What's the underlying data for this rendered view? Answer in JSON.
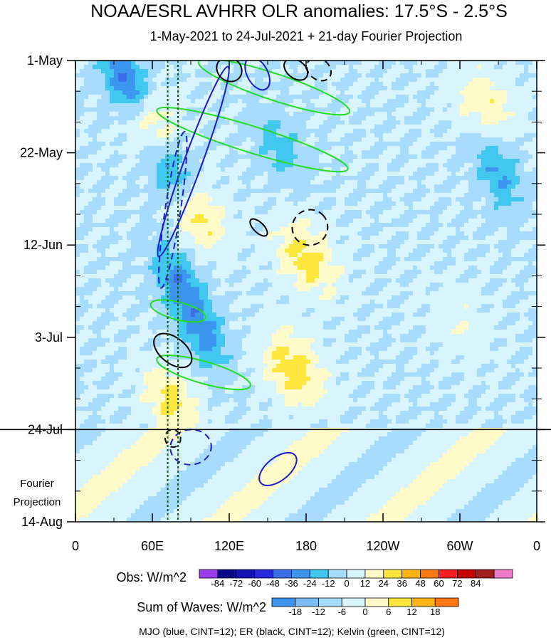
{
  "chart_data": {
    "type": "heatmap",
    "title": "NOAA/ESRL AVHRR OLR anomalies: 17.5°S - 2.5°S",
    "subtitle": "1-May-2021 to 24-Jul-2021 + 21-day Fourier Projection",
    "x_ticks": [
      "0",
      "60E",
      "120E",
      "180",
      "120W",
      "60W",
      "0"
    ],
    "x_tick_values": [
      0,
      60,
      120,
      180,
      240,
      300,
      360
    ],
    "xlim": [
      0,
      360
    ],
    "y_ticks": [
      "1-May",
      "22-May",
      "12-Jun",
      "3-Jul",
      "24-Jul",
      "14-Aug"
    ],
    "y_tick_values": [
      0,
      21,
      42,
      63,
      84,
      105
    ],
    "ylim": [
      0,
      105
    ],
    "projection_start_day": 84,
    "projection_label_lines": [
      "Fourier",
      "Projection"
    ],
    "reference_lines_lon": [
      72,
      80
    ],
    "obs_colorbar": {
      "label": "Obs: W/m^2",
      "levels": [
        -84,
        -72,
        -60,
        -48,
        -36,
        -24,
        -12,
        0,
        12,
        24,
        36,
        48,
        60,
        72,
        84
      ],
      "level_labels": [
        "-84",
        "-72",
        "-60",
        "-48",
        "-36",
        "-24",
        "-12",
        "0",
        "12",
        "24",
        "36",
        "48",
        "60",
        "72",
        "84"
      ],
      "colors": [
        "#9b3cf0",
        "#08088c",
        "#1414b4",
        "#2828dc",
        "#3c6ee6",
        "#3c96f0",
        "#40c8f0",
        "#a8dcff",
        "#d8f4ff",
        "#fffac8",
        "#ffe63c",
        "#ffb414",
        "#ff7814",
        "#ff1e1e",
        "#c80000",
        "#a01e1e",
        "#f07ac8"
      ]
    },
    "waves_colorbar": {
      "label": "Sum of Waves: W/m^2",
      "levels": [
        -18,
        -12,
        -6,
        0,
        6,
        12,
        18
      ],
      "level_labels": [
        "-18",
        "-12",
        "-6",
        "0",
        "6",
        "12",
        "18"
      ],
      "colors": [
        "#3c96f0",
        "#7cbcf4",
        "#a8dcff",
        "#d8f4ff",
        "#fffac8",
        "#ffe63c",
        "#ffb414",
        "#ff7814"
      ]
    },
    "footer": "MJO (blue, CINT=12); ER (black, CINT=12); Kelvin (green, CINT=12)",
    "mjo_contours": [
      {
        "lon": 92,
        "day": 23,
        "rlon": 7,
        "rday": 23,
        "angle": 0.35,
        "dashed": false
      },
      {
        "lon": 76,
        "day": 34,
        "rlon": 6,
        "rday": 18,
        "angle": 0.15,
        "dashed": true
      },
      {
        "lon": 142,
        "day": 3,
        "rlon": 8,
        "rday": 4,
        "angle": -0.5,
        "dashed": false
      },
      {
        "lon": 90,
        "day": 88,
        "rlon": 16,
        "rday": 4,
        "angle": -0.1,
        "dashed": true
      },
      {
        "lon": 158,
        "day": 93,
        "rlon": 9,
        "rday": 5,
        "angle": 0.9,
        "dashed": false
      }
    ],
    "er_contours": [
      {
        "lon": 120,
        "day": 2,
        "rlon": 9,
        "rday": 3,
        "angle": -0.9,
        "dashed": false
      },
      {
        "lon": 172,
        "day": 2,
        "rlon": 7,
        "rday": 3,
        "angle": -0.9,
        "dashed": false
      },
      {
        "lon": 190,
        "day": 2,
        "rlon": 8,
        "rday": 3,
        "angle": -0.9,
        "dashed": true
      },
      {
        "lon": 183,
        "day": 38,
        "rlon": 14,
        "rday": 4,
        "angle": -0.8,
        "dashed": true
      },
      {
        "lon": 143,
        "day": 38,
        "rlon": 4,
        "rday": 2.5,
        "angle": -0.8,
        "dashed": false
      },
      {
        "lon": 76,
        "day": 66,
        "rlon": 10,
        "rday": 5,
        "angle": -0.9,
        "dashed": false
      },
      {
        "lon": 76,
        "day": 86,
        "rlon": 6,
        "rday": 2,
        "angle": -0.2,
        "dashed": true
      }
    ],
    "kelvin_contours": [
      {
        "lon": 155,
        "day": 6,
        "rlon": 62,
        "rday": 3,
        "angle": 0.32,
        "dashed": false
      },
      {
        "lon": 138,
        "day": 18,
        "rlon": 78,
        "rday": 3,
        "angle": 0.3,
        "dashed": false
      },
      {
        "lon": 80,
        "day": 57,
        "rlon": 22,
        "rday": 2,
        "angle": 0.25,
        "dashed": false
      },
      {
        "lon": 100,
        "day": 71,
        "rlon": 38,
        "rday": 2.5,
        "angle": 0.28,
        "dashed": false
      }
    ],
    "anomaly_field_note": "",
    "anomaly_features": [
      {
        "lon": 40,
        "day": 5,
        "slope": 3.0,
        "amp": -40,
        "width": 6
      },
      {
        "lon": 60,
        "day": 15,
        "slope": 3.0,
        "amp": 30,
        "width": 7
      },
      {
        "lon": 75,
        "day": 25,
        "slope": 3.0,
        "amp": -35,
        "width": 6
      },
      {
        "lon": 95,
        "day": 35,
        "slope": 3.0,
        "amp": 30,
        "width": 7
      },
      {
        "lon": 80,
        "day": 50,
        "slope": 3.0,
        "amp": -30,
        "width": 6
      },
      {
        "lon": 100,
        "day": 62,
        "slope": 3.0,
        "amp": -28,
        "width": 6
      },
      {
        "lon": 75,
        "day": 78,
        "slope": 3.0,
        "amp": 28,
        "width": 7
      },
      {
        "lon": 180,
        "day": 45,
        "slope": 3.0,
        "amp": 30,
        "width": 8
      },
      {
        "lon": 170,
        "day": 70,
        "slope": 3.0,
        "amp": 32,
        "width": 8
      },
      {
        "lon": 160,
        "day": 20,
        "slope": 3.0,
        "amp": -18,
        "width": 6
      },
      {
        "lon": 320,
        "day": 10,
        "slope": 3.0,
        "amp": 22,
        "width": 8
      },
      {
        "lon": 330,
        "day": 25,
        "slope": 3.0,
        "amp": -26,
        "width": 6
      },
      {
        "lon": 300,
        "day": 60,
        "slope": 3.0,
        "amp": 10,
        "width": 8
      }
    ]
  }
}
